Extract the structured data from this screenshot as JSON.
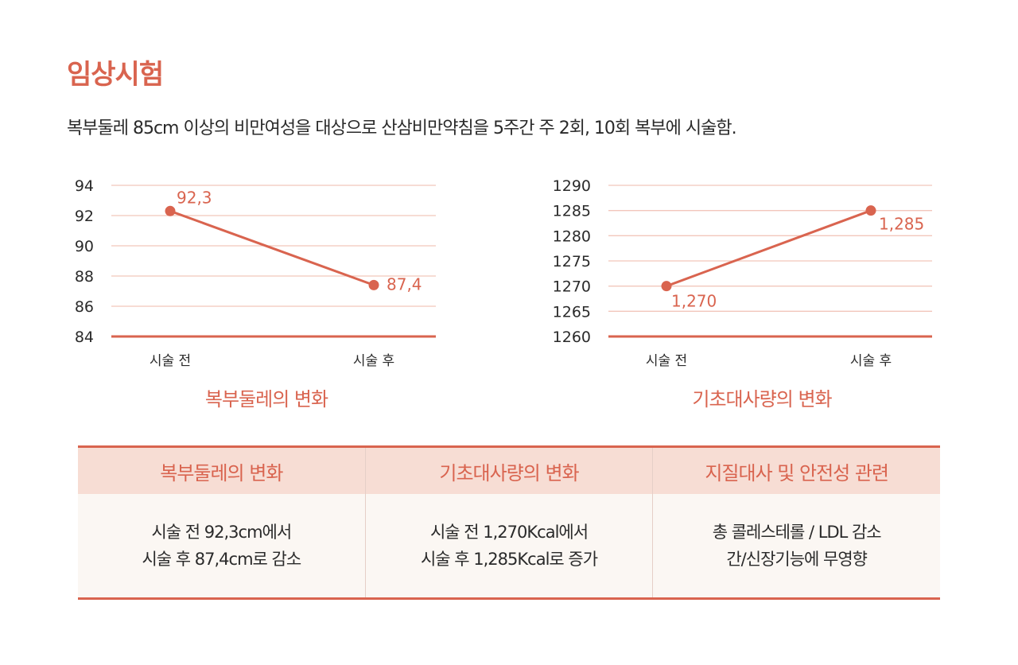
{
  "header": {
    "title": "임상시험",
    "description": "복부둘레 85cm 이상의 비만여성을 대상으로 산삼비만약침을 5주간 주 2회, 10회 복부에 시술함."
  },
  "colors": {
    "accent": "#d9644f",
    "grid": "#f2c6bb",
    "header_bg": "#f7ddd4"
  },
  "chart_data": [
    {
      "type": "line",
      "title": "복부둘레의 변화",
      "categories": [
        "시술 전",
        "시술 후"
      ],
      "values": [
        92.3,
        87.4
      ],
      "data_labels": [
        "92,3",
        "87,4"
      ],
      "ylim": [
        84,
        94
      ],
      "yticks": [
        "84",
        "86",
        "88",
        "90",
        "92",
        "94"
      ],
      "grid": true
    },
    {
      "type": "line",
      "title": "기초대사량의 변화",
      "categories": [
        "시술 전",
        "시술 후"
      ],
      "values": [
        1270,
        1285
      ],
      "data_labels": [
        "1,270",
        "1,285"
      ],
      "ylim": [
        1260,
        1290
      ],
      "yticks": [
        "1260",
        "1265",
        "1270",
        "1275",
        "1280",
        "1285",
        "1290"
      ],
      "grid": true
    }
  ],
  "summary": [
    {
      "heading": "복부둘레의 변화",
      "line1": "시술 전 92,3cm에서",
      "line2": "시술 후 87,4cm로 감소"
    },
    {
      "heading": "기초대사량의 변화",
      "line1": "시술 전 1,270Kcal에서",
      "line2": "시술 후 1,285Kcal로 증가"
    },
    {
      "heading": "지질대사 및 안전성 관련",
      "line1": "총 콜레스테롤 / LDL 감소",
      "line2": "간/신장기능에 무영향"
    }
  ]
}
